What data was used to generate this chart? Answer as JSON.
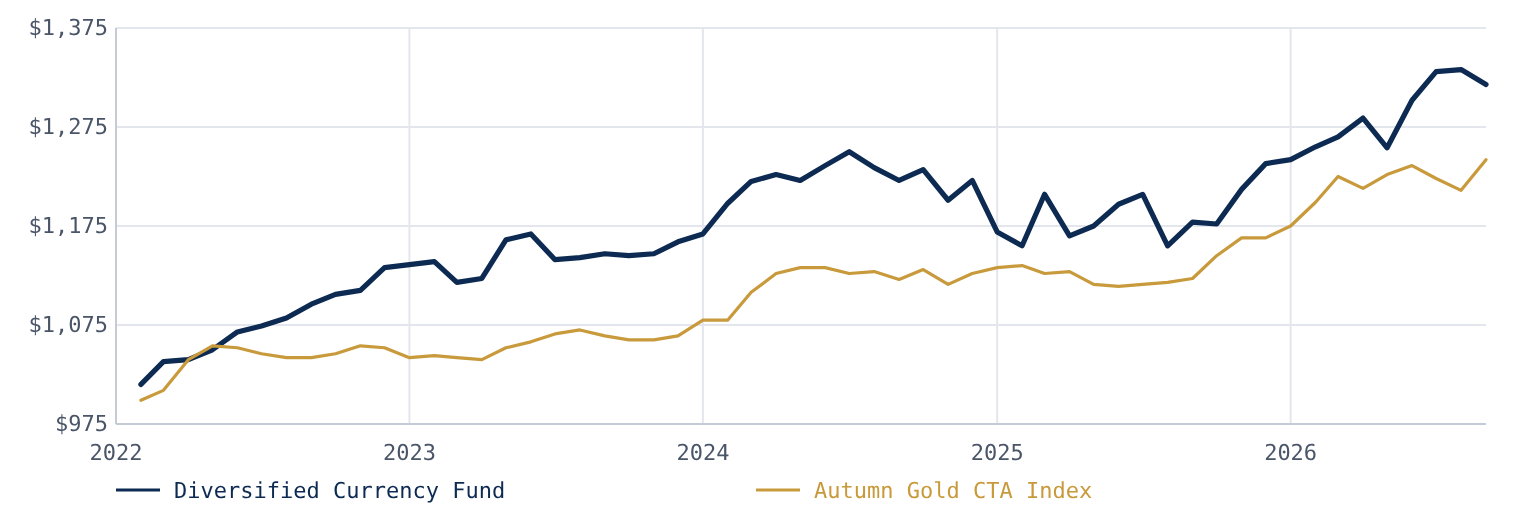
{
  "chart_data": {
    "type": "line",
    "x": [
      "2022-02",
      "2022-03",
      "2022-04",
      "2022-05",
      "2022-06",
      "2022-07",
      "2022-08",
      "2022-09",
      "2022-10",
      "2022-11",
      "2022-12",
      "2023-01",
      "2023-02",
      "2023-03",
      "2023-04",
      "2023-05",
      "2023-06",
      "2023-07",
      "2023-08",
      "2023-09",
      "2023-10",
      "2023-11",
      "2023-12",
      "2024-01",
      "2024-02",
      "2024-03",
      "2024-04",
      "2024-05",
      "2024-06",
      "2024-07",
      "2024-08",
      "2024-09",
      "2024-10",
      "2024-11",
      "2024-12",
      "2025-01",
      "2025-02",
      "2025-03",
      "2025-04",
      "2025-05",
      "2025-06",
      "2025-07",
      "2025-08",
      "2025-09",
      "2025-10",
      "2025-11",
      "2025-12",
      "2026-01",
      "2026-02",
      "2026-03",
      "2026-04",
      "2026-05",
      "2026-06",
      "2026-07",
      "2026-08",
      "2026-09"
    ],
    "series": [
      {
        "name": "Diversified Currency Fund",
        "color": "#0d2b52",
        "values": [
          1015,
          1038,
          1040,
          1050,
          1068,
          1074,
          1082,
          1096,
          1106,
          1110,
          1133,
          1136,
          1139,
          1118,
          1122,
          1161,
          1167,
          1141,
          1143,
          1147,
          1145,
          1147,
          1159,
          1167,
          1198,
          1220,
          1227,
          1221,
          1236,
          1250,
          1234,
          1221,
          1232,
          1201,
          1221,
          1169,
          1155,
          1207,
          1165,
          1175,
          1197,
          1207,
          1155,
          1179,
          1177,
          1212,
          1238,
          1242,
          1255,
          1265,
          1284,
          1254,
          1302,
          1331,
          1333,
          1318
        ]
      },
      {
        "name": "Autumn Gold CTA Index",
        "color": "#c89a3c",
        "values": [
          999,
          1009,
          1040,
          1054,
          1052,
          1046,
          1042,
          1042,
          1046,
          1054,
          1052,
          1042,
          1044,
          1042,
          1040,
          1052,
          1058,
          1066,
          1070,
          1064,
          1060,
          1060,
          1064,
          1080,
          1080,
          1108,
          1127,
          1133,
          1133,
          1127,
          1129,
          1121,
          1131,
          1116,
          1127,
          1133,
          1135,
          1127,
          1129,
          1116,
          1114,
          1116,
          1118,
          1122,
          1145,
          1163,
          1163,
          1175,
          1199,
          1225,
          1213,
          1227,
          1236,
          1223,
          1211,
          1242
        ]
      }
    ],
    "xlim": [
      "2022-01",
      "2026-09"
    ],
    "xticks": [
      {
        "value": "2022-01",
        "label": "2022"
      },
      {
        "value": "2023-01",
        "label": "2023"
      },
      {
        "value": "2024-01",
        "label": "2024"
      },
      {
        "value": "2025-01",
        "label": "2025"
      },
      {
        "value": "2026-01",
        "label": "2026"
      }
    ],
    "ylim": [
      975,
      1375
    ],
    "yticks": [
      {
        "value": 975,
        "label": "$975"
      },
      {
        "value": 1075,
        "label": "$1,075"
      },
      {
        "value": 1175,
        "label": "$1,175"
      },
      {
        "value": 1275,
        "label": "$1,275"
      },
      {
        "value": 1375,
        "label": "$1,375"
      }
    ],
    "grid": true,
    "legend": "bottom",
    "marker": "none",
    "line_style": "solid"
  }
}
